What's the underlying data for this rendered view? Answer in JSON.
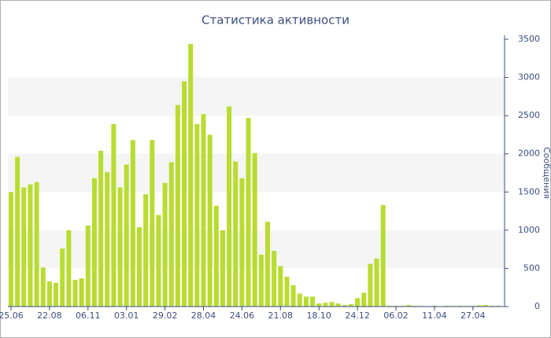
{
  "chart_data": {
    "type": "bar",
    "title": "Статистика активности",
    "y_label": "Сообщения",
    "color": "#b8dc32",
    "categories": [
      "25.06",
      null,
      null,
      null,
      null,
      null,
      "22.08",
      null,
      null,
      null,
      null,
      null,
      "06.11",
      null,
      null,
      null,
      null,
      null,
      "03.01",
      null,
      null,
      null,
      null,
      null,
      "29.02",
      null,
      null,
      null,
      null,
      null,
      "28.04",
      null,
      null,
      null,
      null,
      null,
      "24.06",
      null,
      null,
      null,
      null,
      null,
      "21.08",
      null,
      null,
      null,
      null,
      null,
      "18.10",
      null,
      null,
      null,
      null,
      null,
      "24.12",
      null,
      null,
      null,
      null,
      null,
      "06.02",
      null,
      null,
      null,
      null,
      null,
      "11.04",
      null,
      null,
      null,
      null,
      null,
      "27.04",
      null,
      null,
      null,
      null
    ],
    "values": [
      1500,
      1960,
      1560,
      1600,
      1630,
      510,
      330,
      310,
      760,
      1000,
      350,
      370,
      1060,
      1680,
      2040,
      1760,
      2390,
      1560,
      1860,
      2180,
      1040,
      1470,
      2180,
      1200,
      1620,
      1890,
      2640,
      2950,
      3440,
      2390,
      2520,
      2250,
      1320,
      1000,
      2620,
      1900,
      1680,
      2470,
      2010,
      680,
      1110,
      730,
      530,
      390,
      280,
      170,
      130,
      130,
      40,
      50,
      60,
      40,
      20,
      30,
      110,
      180,
      560,
      630,
      1330,
      10,
      10,
      10,
      20,
      10,
      10,
      5,
      10,
      5,
      10,
      10,
      10,
      10,
      10,
      15,
      20,
      10,
      10
    ],
    "ylim": [
      0,
      3500
    ],
    "yticks": [
      0,
      500,
      1000,
      1500,
      2000,
      2500,
      3000,
      3500
    ],
    "y_axis_side": "right",
    "bands": true
  }
}
